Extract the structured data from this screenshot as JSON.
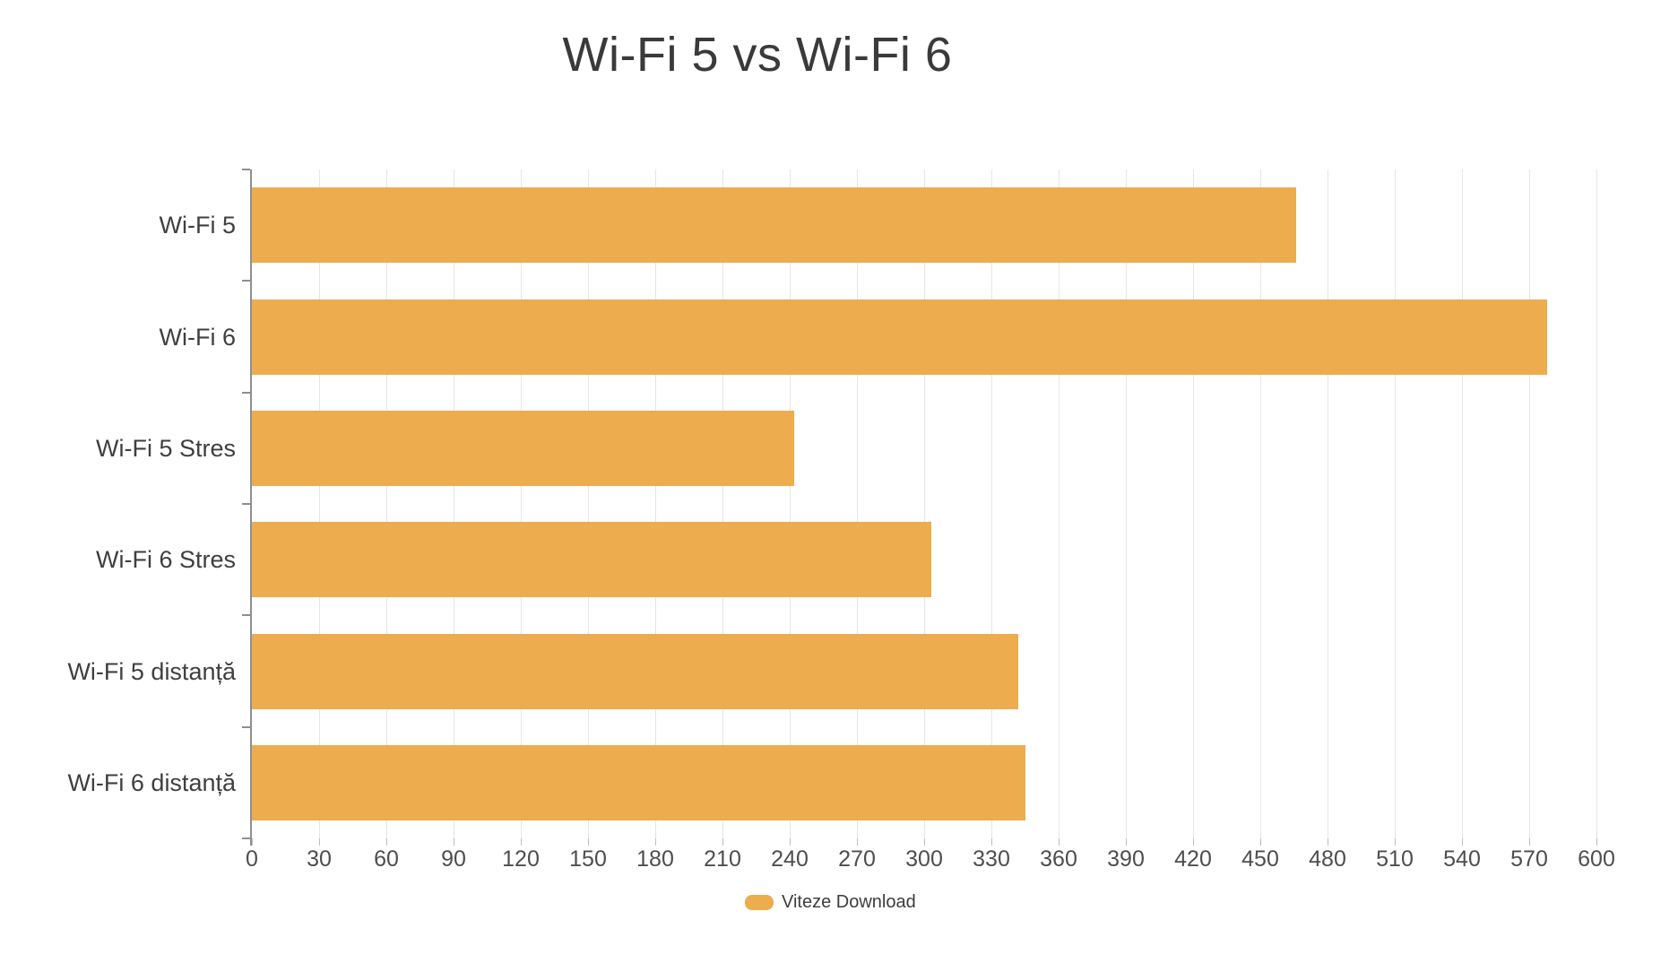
{
  "title": "Wi-Fi 5 vs Wi-Fi 6",
  "legend": {
    "label": "Viteze Download"
  },
  "colors": {
    "bar": "#EDAC4D",
    "title_text": "#3A3A3A",
    "axis_text": "#4E4E4E",
    "category_text": "#3F3F3F",
    "gridline": "#E6E6E6",
    "axis_line": "#8F8F8F"
  },
  "chart_data": {
    "type": "bar",
    "orientation": "horizontal",
    "title": "Wi-Fi 5 vs Wi-Fi 6",
    "categories": [
      "Wi-Fi 5",
      "Wi-Fi 6",
      "Wi-Fi 5 Stres",
      "Wi-Fi 6 Stres",
      "Wi-Fi 5 distanță",
      "Wi-Fi 6 distanță"
    ],
    "series": [
      {
        "name": "Viteze Download",
        "values": [
          466,
          578,
          242,
          303,
          342,
          345
        ]
      }
    ],
    "xlabel": "",
    "ylabel": "",
    "xlim": [
      0,
      600
    ],
    "x_tick_step": 30,
    "x_tick_labels": [
      "0",
      "30",
      "60",
      "90",
      "120",
      "150",
      "180",
      "210",
      "240",
      "270",
      "300",
      "330",
      "360",
      "390",
      "420",
      "450",
      "480",
      "510",
      "540",
      "570",
      "600"
    ],
    "grid": "vertical-only",
    "legend_position": "bottom",
    "bar_color": "#EDAC4D"
  }
}
